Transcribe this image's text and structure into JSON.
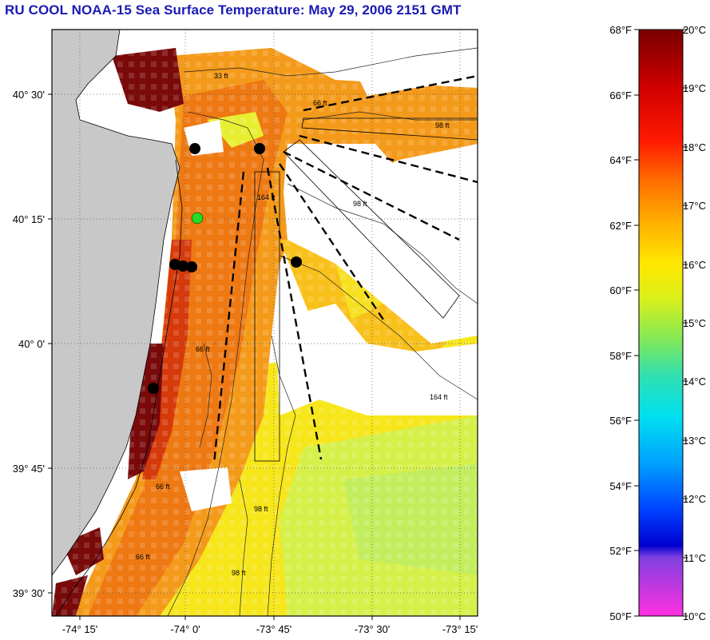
{
  "title": "RU COOL  NOAA-15  Sea Surface Temperature:  May 29, 2006 2151 GMT",
  "map": {
    "lat_labels": [
      "40° 30'",
      "40° 15'",
      "40° 0'",
      "39° 45'",
      "39° 30'"
    ],
    "lon_labels": [
      "-74° 15'",
      "-74° 0'",
      "-73° 45'",
      "-73° 30'",
      "-73° 15'"
    ],
    "depth_labels": [
      "33 ft",
      "66 ft",
      "98 ft",
      "164 ft",
      "98 ft",
      "164 ft",
      "66 ft",
      "98 ft",
      "66 ft",
      "98 ft",
      "66 ft"
    ],
    "colors": {
      "land": "#c8c8c8",
      "no_data": "#ffffff",
      "frame": "#000000",
      "sst_warm": "#7a0a0a",
      "sst_orange": "#f07a10",
      "sst_yellow": "#f8e214",
      "sst_green": "#b6ec4a",
      "station_black": "#000000",
      "station_green": "#22dd22"
    },
    "stations": [
      {
        "id": "station-1",
        "color": "black"
      },
      {
        "id": "station-2",
        "color": "black"
      },
      {
        "id": "station-3",
        "color": "green"
      },
      {
        "id": "station-4",
        "color": "black"
      },
      {
        "id": "station-5",
        "color": "black"
      },
      {
        "id": "station-6",
        "color": "black"
      },
      {
        "id": "station-7",
        "color": "black"
      },
      {
        "id": "station-8",
        "color": "black"
      }
    ]
  },
  "colorbar": {
    "fahrenheit_labels": [
      "68°F",
      "66°F",
      "64°F",
      "62°F",
      "60°F",
      "58°F",
      "56°F",
      "54°F",
      "52°F",
      "50°F"
    ],
    "celsius_labels": [
      "20°C",
      "19°C",
      "18°C",
      "17°C",
      "16°C",
      "15°C",
      "14°C",
      "13°C",
      "12°C",
      "11°C",
      "10°C"
    ],
    "gradient_colors": [
      "#7a0000",
      "#c00000",
      "#ff1a00",
      "#ff6a00",
      "#ffb000",
      "#ffe600",
      "#d8f01a",
      "#7de858",
      "#22e0c0",
      "#00c8ff",
      "#0060ff",
      "#0000e0",
      "#9040e0",
      "#ff30e0"
    ]
  }
}
